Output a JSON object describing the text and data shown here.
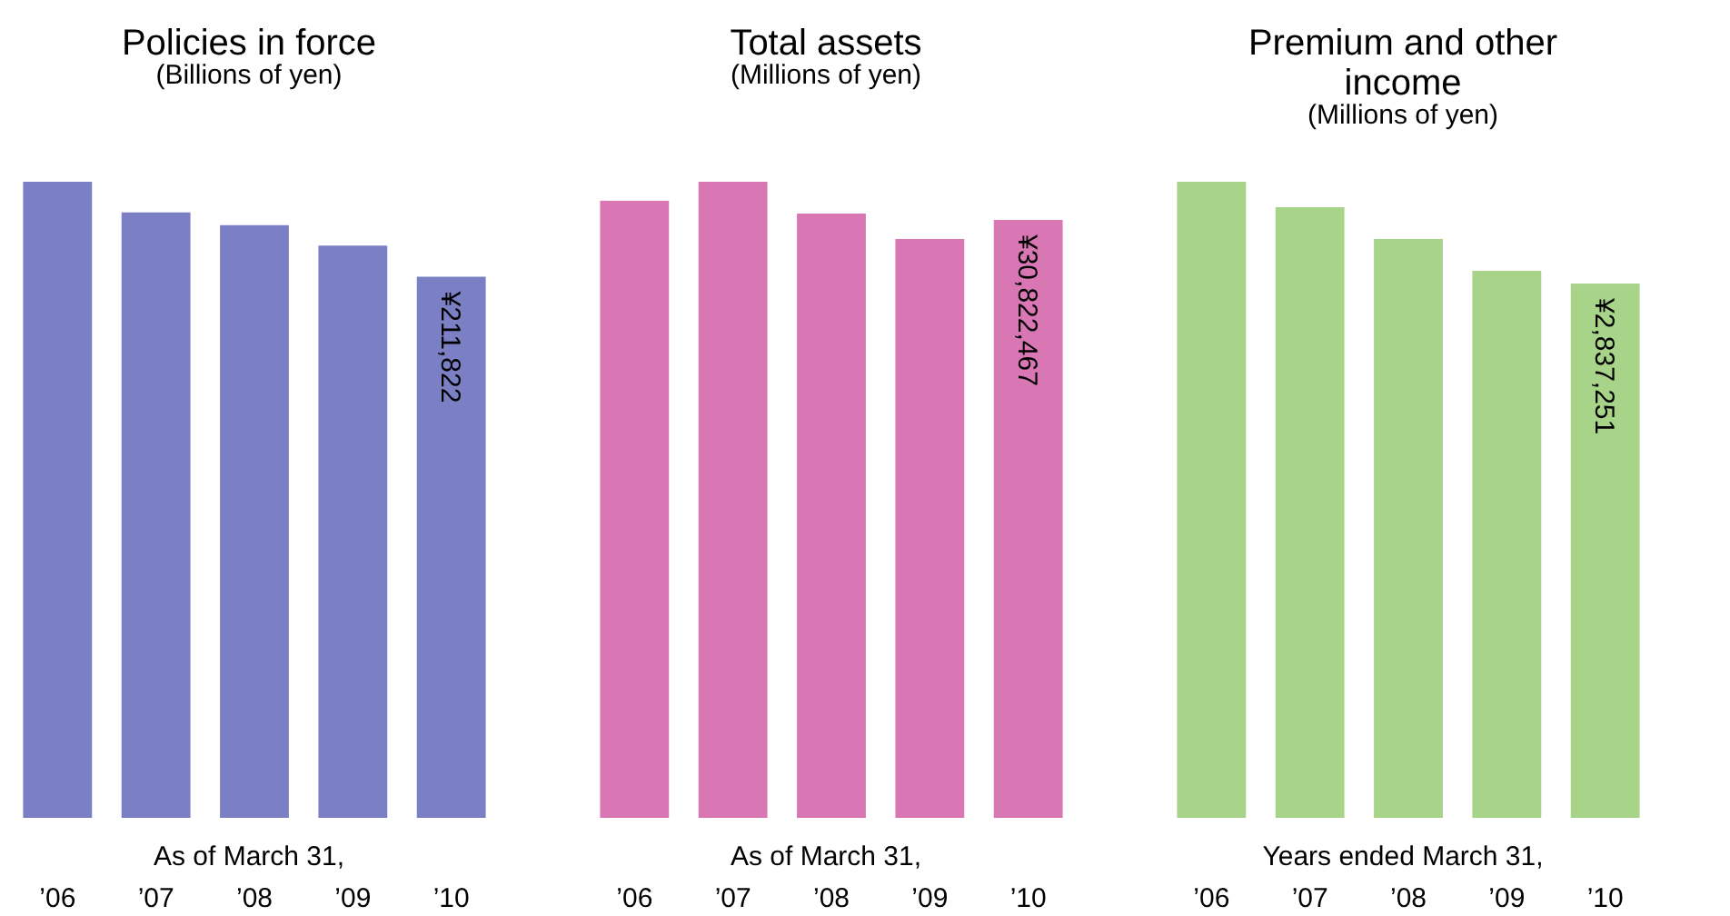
{
  "chart_data": [
    {
      "type": "bar",
      "title": "Policies in force",
      "subtitle": "(Billions of yen)",
      "categories": [
        "’06",
        "’07",
        "’08",
        "’09",
        "’10"
      ],
      "values": [
        249000,
        237000,
        232000,
        224000,
        211822
      ],
      "color": "#7b7fc4",
      "value_labels": [
        null,
        null,
        null,
        null,
        "¥211,822"
      ],
      "annotations": [
        "As of March 31,"
      ]
    },
    {
      "type": "bar",
      "title": "Total assets",
      "subtitle": "(Millions of yen)",
      "categories": [
        "’06",
        "’07",
        "’08",
        "’09",
        "’10"
      ],
      "values": [
        31810000,
        32790000,
        31150000,
        29840000,
        30822467
      ],
      "color": "#d977b5",
      "value_labels": [
        null,
        null,
        null,
        null,
        "¥30,822,467"
      ],
      "annotations": [
        "As of March 31,"
      ]
    },
    {
      "type": "bar",
      "title": "Premium and other income",
      "subtitle": "(Millions of yen)",
      "categories": [
        "’06",
        "’07",
        "’08",
        "’09",
        "’10"
      ],
      "values": [
        3378000,
        3243000,
        3074000,
        2905000,
        2837251
      ],
      "color": "#a8d48a",
      "value_labels": [
        null,
        null,
        null,
        null,
        "¥2,837,251"
      ],
      "annotations": [
        "Years ended March 31,"
      ]
    }
  ]
}
